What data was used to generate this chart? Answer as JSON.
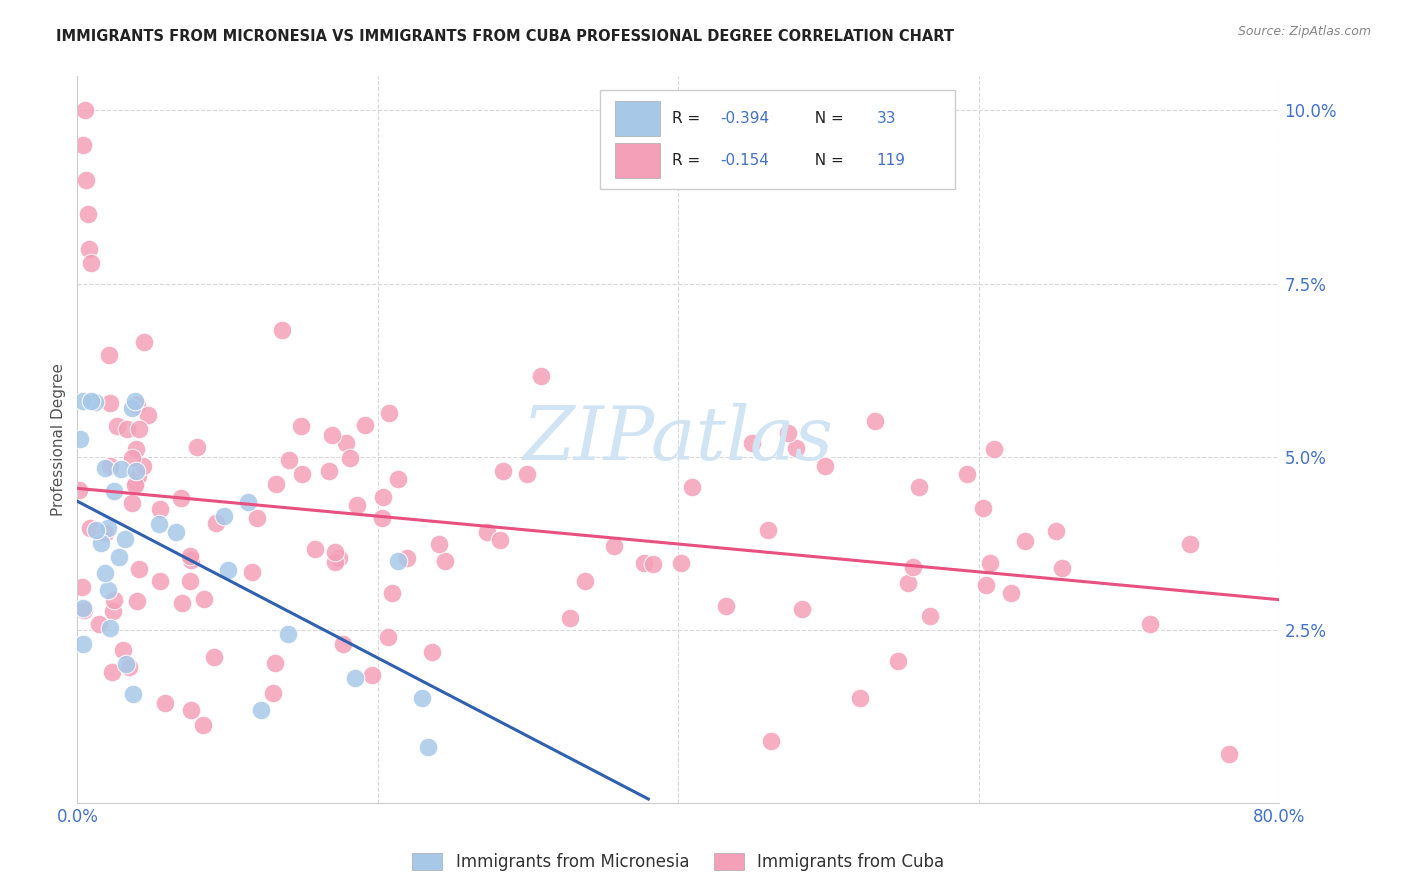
{
  "title": "IMMIGRANTS FROM MICRONESIA VS IMMIGRANTS FROM CUBA PROFESSIONAL DEGREE CORRELATION CHART",
  "source": "Source: ZipAtlas.com",
  "ylabel": "Professional Degree",
  "r_micronesia": -0.394,
  "n_micronesia": 33,
  "r_cuba": -0.154,
  "n_cuba": 119,
  "xlim": [
    0.0,
    0.8
  ],
  "ylim": [
    0.0,
    0.105
  ],
  "color_micronesia": "#a8c8e8",
  "color_cuba": "#f4a0b8",
  "line_color_micronesia": "#3060b0",
  "line_color_cuba": "#e85080",
  "bg_color": "#ffffff",
  "grid_color": "#d8d8d8",
  "watermark_color": "#d0e4f4",
  "axis_label_color": "#4472c4",
  "title_color": "#222222",
  "source_color": "#888888",
  "legend_text_black": "#222222",
  "legend_text_blue": "#4472c4"
}
